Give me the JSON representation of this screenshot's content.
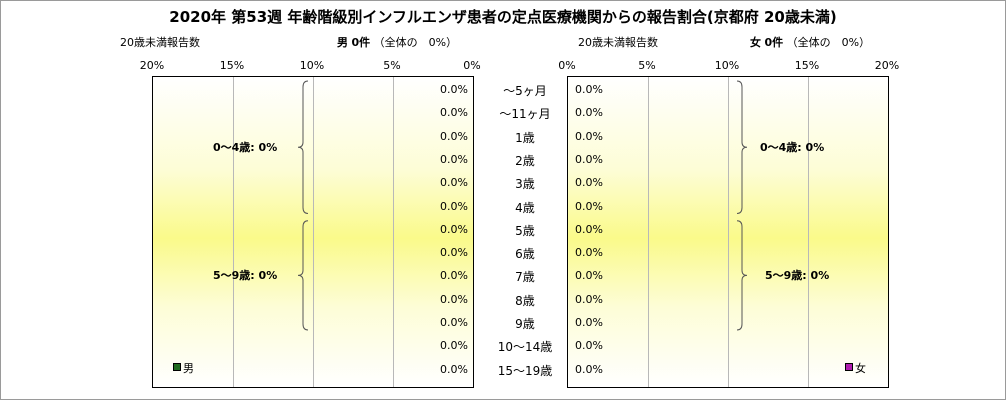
{
  "title": "2020年 第53週 年齢階級別インフルエンザ患者の定点医療機関からの報告割合(京都府 20歳未満)",
  "left_panel": {
    "subtitle_left": "20歳未満報告数",
    "sex_label": "男",
    "count_text": "0件",
    "share_text": "（全体の　0%）",
    "legend_label": "男",
    "legend_color": "#1f6b1f"
  },
  "right_panel": {
    "subtitle_left": "20歳未満報告数",
    "sex_label": "女",
    "count_text": "0件",
    "share_text": "（全体の　0%）",
    "legend_label": "女",
    "legend_color": "#b01eb0"
  },
  "chart_data": {
    "type": "bar",
    "title": "2020年 第53週 年齢階級別インフルエンザ患者の定点医療機関からの報告割合(京都府 20歳未満)",
    "categories": [
      "～5ヶ月",
      "～11ヶ月",
      "1歳",
      "2歳",
      "3歳",
      "4歳",
      "5歳",
      "6歳",
      "7歳",
      "8歳",
      "9歳",
      "10～14歳",
      "15～19歳"
    ],
    "series": [
      {
        "name": "男",
        "values": [
          0,
          0,
          0,
          0,
          0,
          0,
          0,
          0,
          0,
          0,
          0,
          0,
          0
        ]
      },
      {
        "name": "女",
        "values": [
          0,
          0,
          0,
          0,
          0,
          0,
          0,
          0,
          0,
          0,
          0,
          0,
          0
        ]
      }
    ],
    "value_labels": [
      "0.0%",
      "0.0%",
      "0.0%",
      "0.0%",
      "0.0%",
      "0.0%",
      "0.0%",
      "0.0%",
      "0.0%",
      "0.0%",
      "0.0%",
      "0.0%",
      "0.0%"
    ],
    "xlim": [
      0,
      20
    ],
    "x_unit": "%",
    "left_ticks": [
      "20%",
      "15%",
      "10%",
      "5%",
      "0%"
    ],
    "right_ticks": [
      "0%",
      "5%",
      "10%",
      "15%",
      "20%"
    ],
    "groups": [
      {
        "label": "0～4歳: 0%",
        "from": 0,
        "to": 5
      },
      {
        "label": "5～9歳: 0%",
        "from": 6,
        "to": 10
      }
    ],
    "grid": true
  }
}
